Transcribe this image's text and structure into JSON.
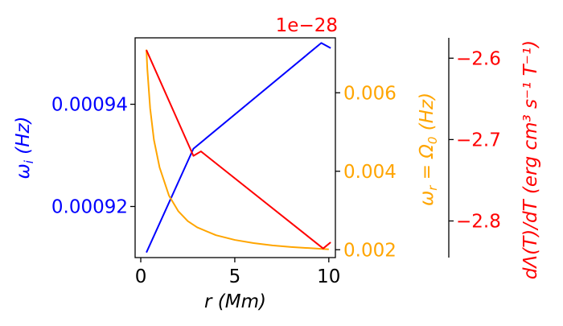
{
  "chart_data": {
    "type": "line",
    "xlabel": "r (Mm)",
    "xlim": [
      -0.3,
      10.35
    ],
    "xticks": [
      0,
      5,
      10
    ],
    "axes": [
      {
        "id": "omega_i",
        "side": "left",
        "label": "ω_i (Hz)",
        "color": "#0000ff",
        "ylim": [
          0.00091,
          0.000953
        ],
        "ticks": [
          {
            "value": 0.00092,
            "label": "0.00092"
          },
          {
            "value": 0.00094,
            "label": "0.00094"
          }
        ]
      },
      {
        "id": "omega_r",
        "side": "right",
        "label": "ω_r = Ω_0 (Hz)",
        "color": "#ffa500",
        "ylim": [
          0.0018,
          0.0074
        ],
        "ticks": [
          {
            "value": 0.002,
            "label": "0.002"
          },
          {
            "value": 0.004,
            "label": "0.004"
          },
          {
            "value": 0.006,
            "label": "0.006"
          }
        ]
      },
      {
        "id": "dlambda",
        "side": "far-right",
        "label": "dΛ(T)/dT (erg cm³ s⁻¹ T⁻¹)",
        "color": "#ff0000",
        "ylim": [
          -2.845e-28,
          -2.575e-28
        ],
        "offset_text": "1e−28",
        "ticks": [
          {
            "value": -2.8e-28,
            "label": "−2.8"
          },
          {
            "value": -2.7e-28,
            "label": "−2.7"
          },
          {
            "value": -2.6e-28,
            "label": "−2.6"
          }
        ]
      }
    ],
    "series": [
      {
        "axis": "omega_i",
        "color": "#0000ff",
        "x": [
          0.3,
          2.8,
          9.6,
          10.1
        ],
        "y": [
          0.000911,
          0.0009313,
          0.000952,
          0.000951
        ]
      },
      {
        "axis": "omega_r",
        "color": "#ffa500",
        "x": [
          0.3,
          0.35,
          0.5,
          0.7,
          1.0,
          1.5,
          2.0,
          2.5,
          3.0,
          4.0,
          5.0,
          6.0,
          7.0,
          8.0,
          9.0,
          10.0
        ],
        "y": [
          0.0071,
          0.0066,
          0.0056,
          0.0048,
          0.0041,
          0.00338,
          0.00298,
          0.00273,
          0.00257,
          0.00237,
          0.00225,
          0.00217,
          0.00211,
          0.00207,
          0.00204,
          0.00201
        ]
      },
      {
        "axis": "dlambda",
        "color": "#ff0000",
        "x": [
          0.3,
          2.8,
          3.2,
          9.7,
          10.1
        ],
        "y": [
          -2.59e-28,
          -2.72e-28,
          -2.7145e-28,
          -2.8338e-28,
          -2.8262e-28
        ]
      }
    ]
  }
}
